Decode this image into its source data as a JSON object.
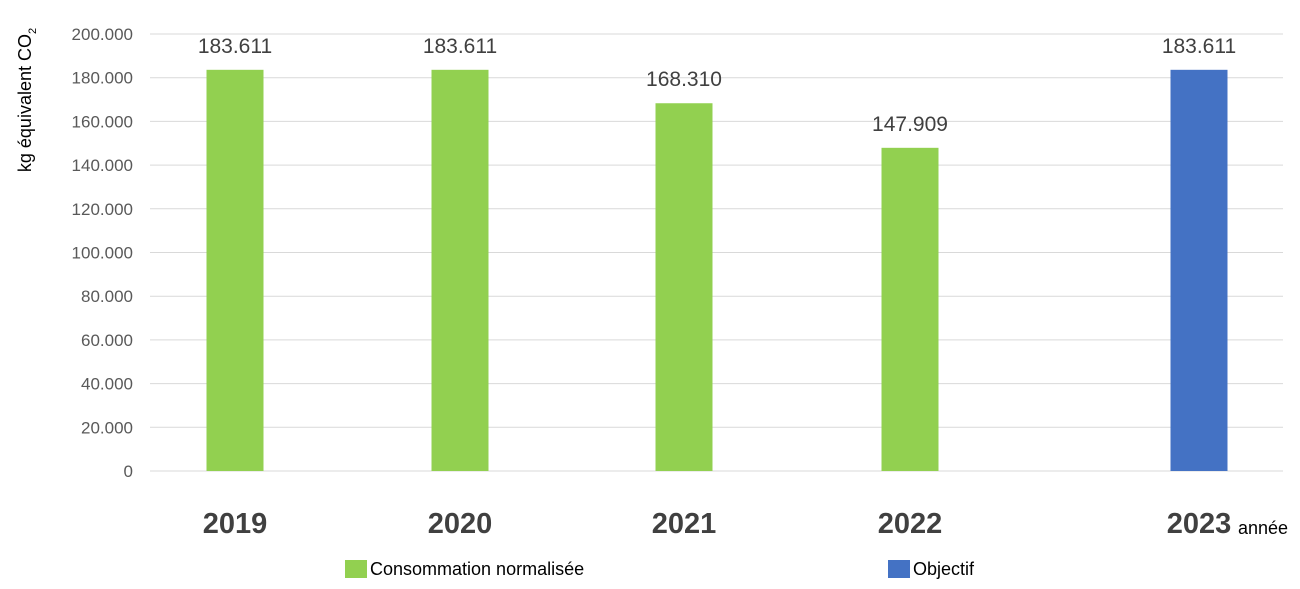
{
  "chart_data": {
    "type": "bar",
    "categories": [
      "2019",
      "2020",
      "2021",
      "2022",
      "2023"
    ],
    "values": [
      183611,
      183611,
      168310,
      147909,
      183611
    ],
    "data_labels": [
      "183.611",
      "183.611",
      "168.310",
      "147.909",
      "183.611"
    ],
    "bar_series": [
      "Consommation normalisée",
      "Consommation normalisée",
      "Consommation normalisée",
      "Consommation normalisée",
      "Objectif"
    ],
    "series": [
      {
        "name": "Consommation normalisée",
        "color": "#92d050"
      },
      {
        "name": "Objectif",
        "color": "#4472c4"
      }
    ],
    "ylim": [
      0,
      200000
    ],
    "yticks": [
      0,
      20000,
      40000,
      60000,
      80000,
      100000,
      120000,
      140000,
      160000,
      180000,
      200000
    ],
    "ytick_labels": [
      "0",
      "20.000",
      "40.000",
      "60.000",
      "80.000",
      "100.000",
      "120.000",
      "140.000",
      "160.000",
      "180.000",
      "200.000"
    ],
    "ylabel": "kg équivalent CO",
    "ylabel_subscript": "2",
    "xlabel": "année",
    "grid": "horizontal",
    "legend_position": "bottom",
    "colors": {
      "gridline": "#d9d9d9",
      "axis_text": "#595959",
      "category_text": "#404040"
    }
  }
}
